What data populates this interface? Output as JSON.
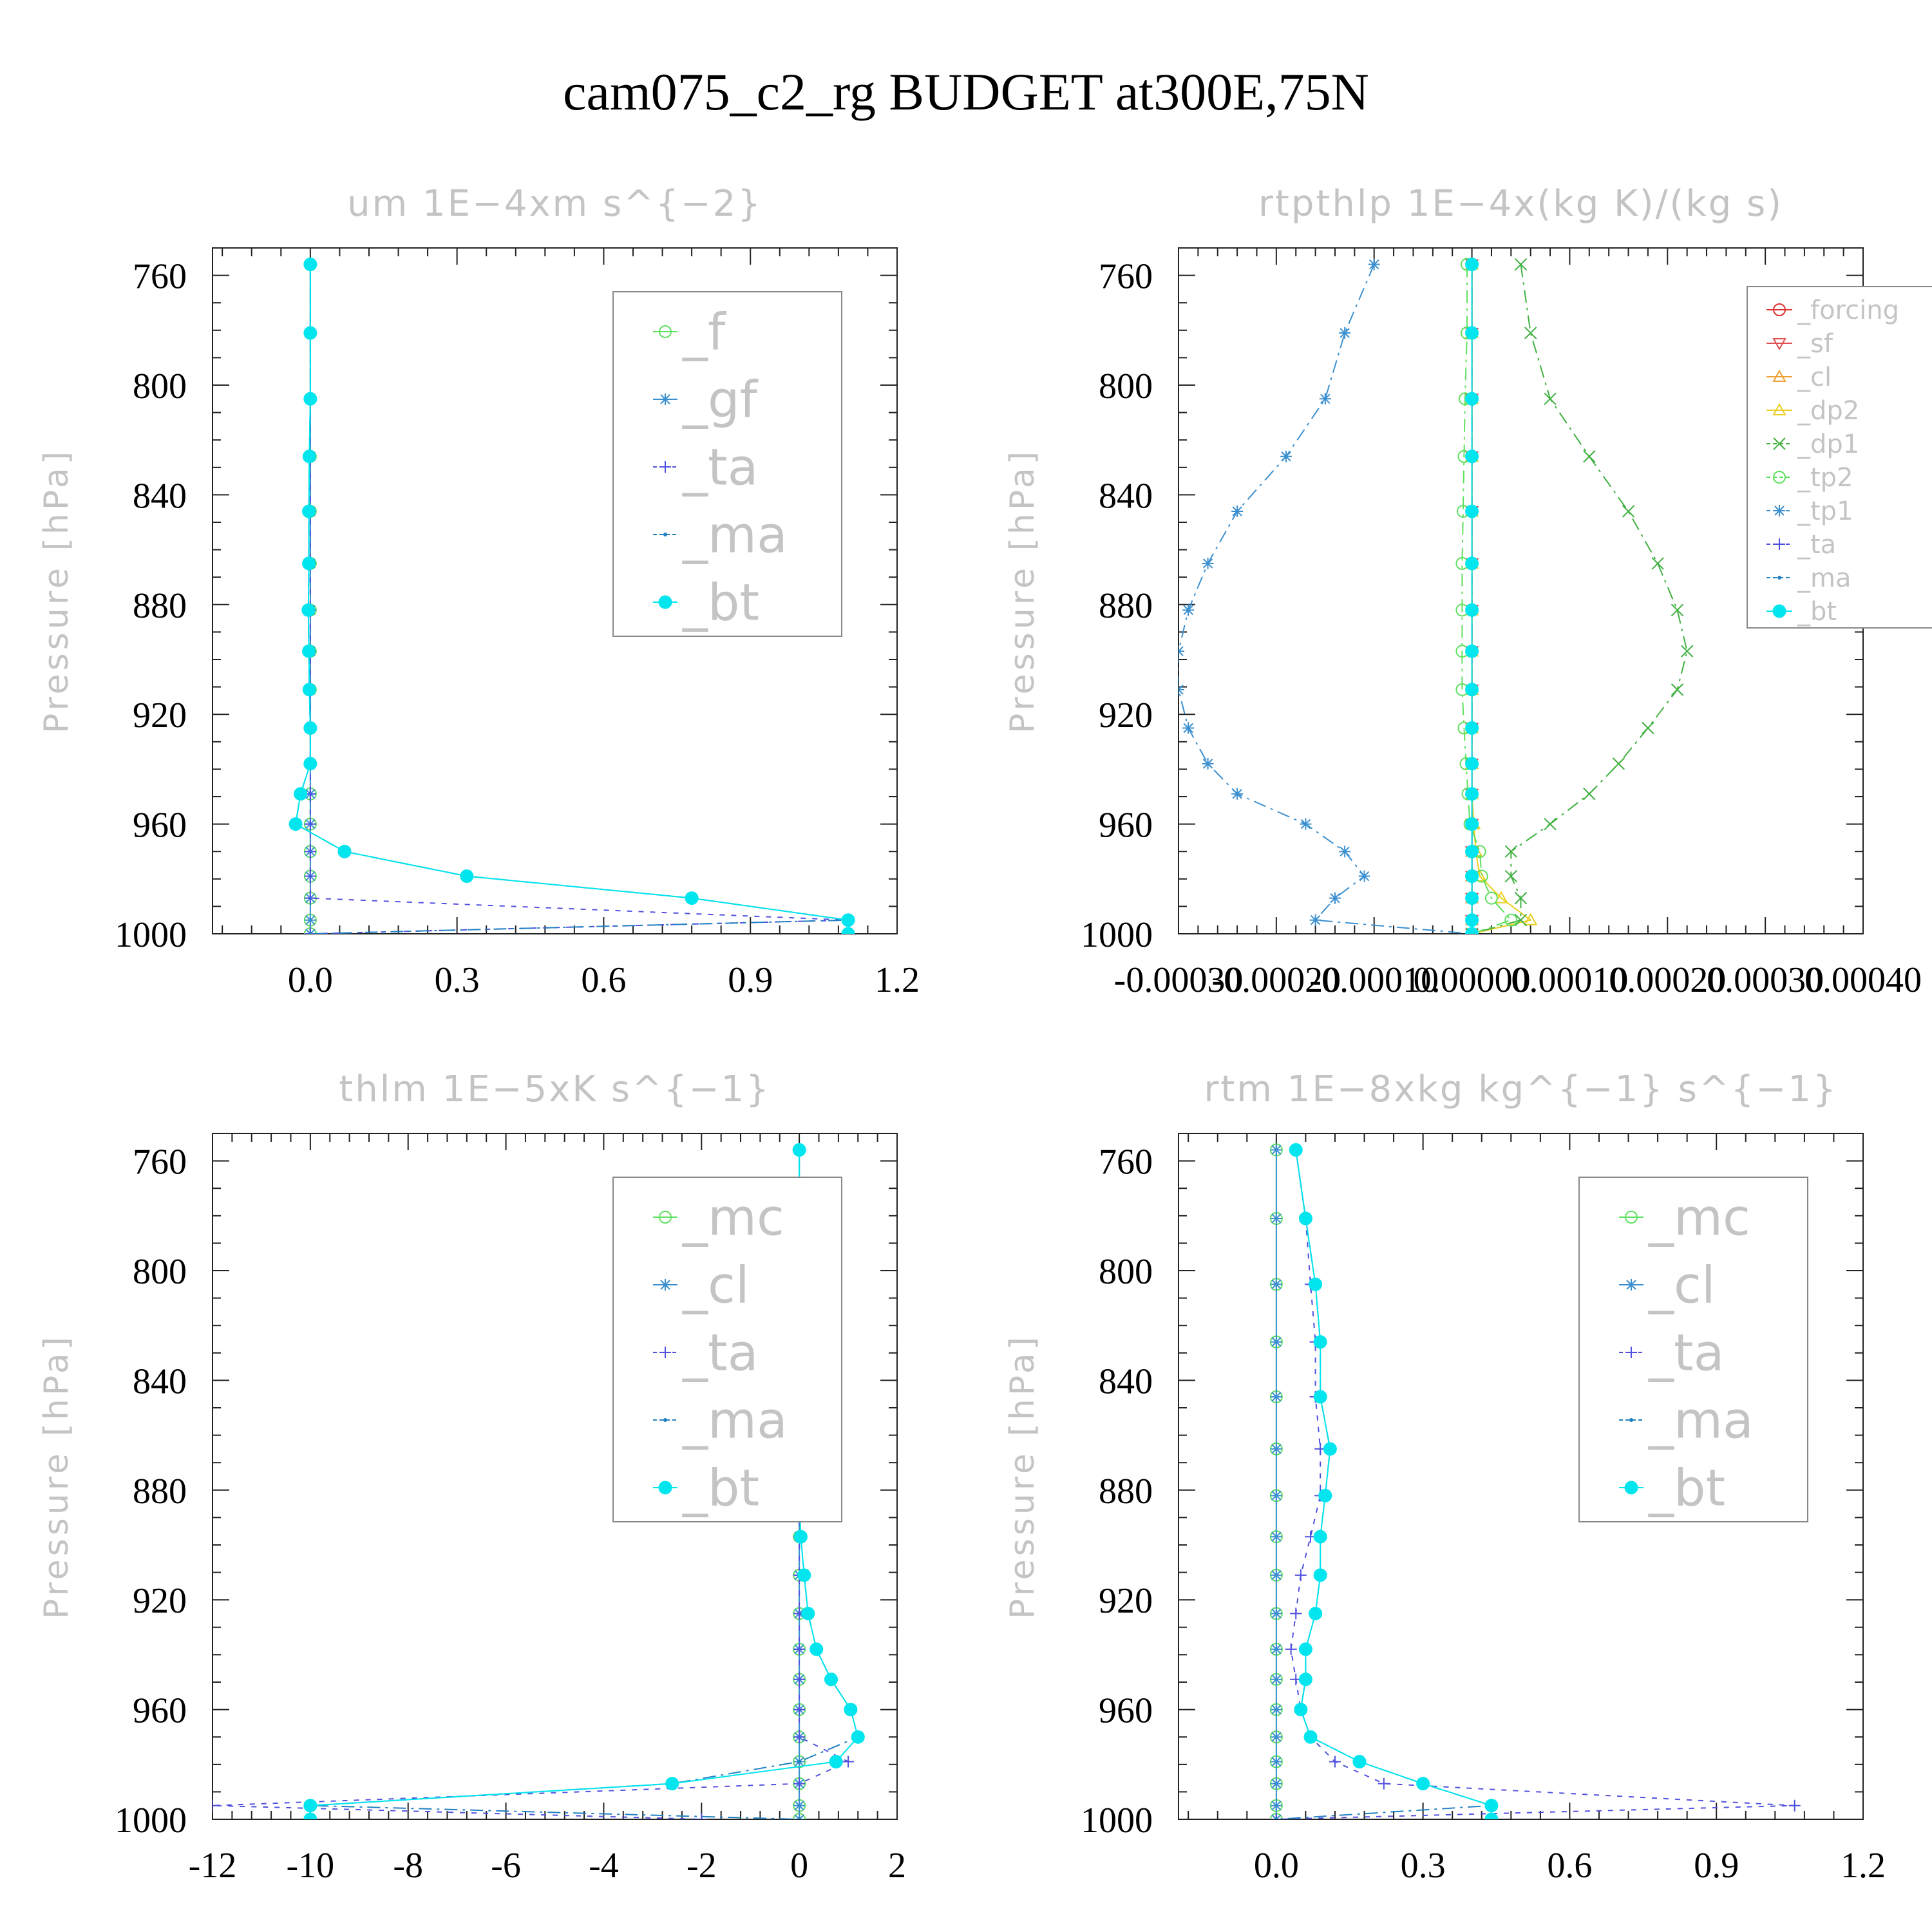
{
  "figure_title": "cam075_c2_rg  BUDGET at300E,75N",
  "chart_data": [
    {
      "type": "line",
      "title": "um   1E−4xm s^{−2}",
      "ylabel": "Pressure [hPa]",
      "xlim": [
        -0.2,
        1.2
      ],
      "ylim": [
        1000,
        750
      ],
      "xticks": [
        0.0,
        0.3,
        0.6,
        0.9,
        1.2
      ],
      "xtick_labels": [
        "0.0",
        "0.3",
        "0.6",
        "0.9",
        "1.2"
      ],
      "yticks": [
        760,
        800,
        840,
        880,
        920,
        960,
        1000
      ],
      "ytick_labels": [
        "760",
        "800",
        "840",
        "880",
        "920",
        "960",
        "1000"
      ],
      "legend_position": "top-right",
      "legend_font": 78,
      "levels": [
        756,
        781,
        805,
        826,
        846,
        865,
        882,
        897,
        911,
        925,
        938,
        949,
        960,
        970,
        979,
        987,
        995,
        1000
      ],
      "series": [
        {
          "name": "_f",
          "color": "#5ee05e",
          "marker": "circle-open",
          "dash": "",
          "values": [
            0,
            0,
            0,
            0,
            0,
            0,
            0,
            0,
            0,
            0,
            0,
            0,
            0,
            0,
            0,
            0,
            0,
            0
          ]
        },
        {
          "name": "_gf",
          "color": "#3a8fd0",
          "marker": "star",
          "dash": "",
          "values": [
            0,
            0,
            0,
            0,
            0,
            0,
            0,
            0,
            0,
            0,
            0,
            0,
            0,
            0,
            0,
            0,
            0,
            0
          ]
        },
        {
          "name": "_ta",
          "color": "#5050e0",
          "marker": "plus",
          "dash": "8,10",
          "values": [
            0,
            0,
            0,
            0,
            0,
            0,
            0,
            0,
            0,
            0,
            0,
            0,
            0,
            0,
            0,
            0,
            1.1,
            0
          ]
        },
        {
          "name": "_ma",
          "color": "#2080c0",
          "marker": "dot",
          "dash": "20,8,4,8",
          "values": [
            0,
            0,
            0,
            -0.002,
            -0.003,
            -0.003,
            -0.004,
            -0.003,
            -0.002,
            0,
            0,
            -0.02,
            -0.03,
            0.07,
            0.32,
            0.78,
            1.1,
            0
          ]
        },
        {
          "name": "_bt",
          "color": "#00e5ee",
          "marker": "filled-circle",
          "dash": "",
          "values": [
            0,
            0,
            0,
            -0.002,
            -0.003,
            -0.003,
            -0.004,
            -0.003,
            -0.002,
            0,
            0,
            -0.02,
            -0.03,
            0.07,
            0.32,
            0.78,
            1.1,
            1.1
          ]
        }
      ]
    },
    {
      "type": "line",
      "title": "rtpthlp   1E−4x(kg K)/(kg s)",
      "ylabel": "Pressure [hPa]",
      "xlim": [
        -0.0003,
        0.0004
      ],
      "ylim": [
        1000,
        750
      ],
      "xticks": [
        -0.0003,
        -0.0002,
        -0.0001,
        0.0,
        0.0001,
        0.0002,
        0.0003,
        0.0004
      ],
      "xtick_labels": [
        "-0.00030",
        "-0.00020",
        "-0.00010",
        "0.00000",
        "0.00010",
        "0.00020",
        "0.00030",
        "0.00040"
      ],
      "yticks": [
        760,
        800,
        840,
        880,
        920,
        960,
        1000
      ],
      "ytick_labels": [
        "760",
        "800",
        "840",
        "880",
        "920",
        "960",
        "1000"
      ],
      "legend_position": "top-right",
      "legend_font": 40,
      "levels": [
        756,
        781,
        805,
        826,
        846,
        865,
        882,
        897,
        911,
        925,
        938,
        949,
        960,
        970,
        979,
        987,
        995,
        1000
      ],
      "series": [
        {
          "name": "_forcing",
          "color": "#e03030",
          "marker": "circle-open",
          "dash": "",
          "values": [
            0,
            0,
            0,
            0,
            0,
            0,
            0,
            0,
            0,
            0,
            0,
            0,
            0,
            0,
            0,
            0,
            0,
            0
          ]
        },
        {
          "name": "_sf",
          "color": "#e05050",
          "marker": "tri-down",
          "dash": "",
          "values": [
            0,
            0,
            0,
            0,
            0,
            0,
            0,
            0,
            0,
            0,
            0,
            0,
            0,
            0,
            0,
            0,
            0,
            0
          ]
        },
        {
          "name": "_cl",
          "color": "#f0a030",
          "marker": "tri-up",
          "dash": "",
          "values": [
            0,
            0,
            0,
            0,
            0,
            0,
            0,
            0,
            0,
            0,
            0,
            0,
            0,
            0,
            0,
            0,
            0,
            0
          ]
        },
        {
          "name": "_dp2",
          "color": "#e8d020",
          "marker": "tri-up",
          "dash": "",
          "values": [
            0,
            0,
            0,
            0,
            0,
            0,
            0,
            0,
            0,
            0,
            0,
            0,
            2e-06,
            4e-06,
            8e-06,
            3e-05,
            6e-05,
            0
          ]
        },
        {
          "name": "_dp1",
          "color": "#40b040",
          "marker": "x",
          "dash": "20,8,4,8",
          "values": [
            5e-05,
            6e-05,
            8e-05,
            0.00012,
            0.00016,
            0.00019,
            0.00021,
            0.00022,
            0.00021,
            0.00018,
            0.00015,
            0.00012,
            8e-05,
            4e-05,
            4e-05,
            5e-05,
            5e-05,
            0
          ]
        },
        {
          "name": "_tp2",
          "color": "#5ee05e",
          "marker": "circle-open",
          "dash": "20,8,4,8",
          "values": [
            -5e-06,
            -5e-06,
            -7e-06,
            -8e-06,
            -9e-06,
            -1e-05,
            -1e-05,
            -1e-05,
            -1e-05,
            -8e-06,
            -6e-06,
            -4e-06,
            -2e-06,
            8e-06,
            1e-05,
            2e-05,
            4e-05,
            0
          ]
        },
        {
          "name": "_tp1",
          "color": "#3a8fd0",
          "marker": "star",
          "dash": "20,8,4,8",
          "values": [
            -0.0001,
            -0.00013,
            -0.00015,
            -0.00019,
            -0.00024,
            -0.00027,
            -0.00029,
            -0.0003,
            -0.0003,
            -0.00029,
            -0.00027,
            -0.00024,
            -0.00017,
            -0.00013,
            -0.00011,
            -0.00014,
            -0.00016,
            0
          ]
        },
        {
          "name": "_ta",
          "color": "#5050e0",
          "marker": "plus",
          "dash": "8,10",
          "values": [
            0,
            0,
            0,
            0,
            0,
            0,
            0,
            0,
            0,
            0,
            0,
            0,
            0,
            0,
            0,
            0,
            0,
            0
          ]
        },
        {
          "name": "_ma",
          "color": "#2080c0",
          "marker": "dot",
          "dash": "20,8,4,8",
          "values": [
            0,
            0,
            0,
            0,
            0,
            0,
            0,
            0,
            0,
            0,
            0,
            0,
            0,
            0,
            0,
            0,
            0,
            0
          ]
        },
        {
          "name": "_bt",
          "color": "#00e5ee",
          "marker": "filled-circle",
          "dash": "",
          "values": [
            0,
            0,
            0,
            0,
            0,
            0,
            0,
            0,
            0,
            0,
            0,
            0,
            0,
            0,
            0,
            0,
            0,
            0
          ]
        }
      ]
    },
    {
      "type": "line",
      "title": "thlm   1E−5xK s^{−1}",
      "ylabel": "Pressure [hPa]",
      "xlim": [
        -12,
        2
      ],
      "ylim": [
        1000,
        750
      ],
      "xticks": [
        -12,
        -10,
        -8,
        -6,
        -4,
        -2,
        0,
        2
      ],
      "xtick_labels": [
        "-12",
        "-10",
        "-8",
        "-6",
        "-4",
        "-2",
        "0",
        "2"
      ],
      "yticks": [
        760,
        800,
        840,
        880,
        920,
        960,
        1000
      ],
      "ytick_labels": [
        "760",
        "800",
        "840",
        "880",
        "920",
        "960",
        "1000"
      ],
      "legend_position": "top-right",
      "legend_font": 78,
      "levels": [
        756,
        781,
        805,
        826,
        846,
        865,
        882,
        897,
        911,
        925,
        938,
        949,
        960,
        970,
        979,
        987,
        995,
        1000
      ],
      "series": [
        {
          "name": "_mc",
          "color": "#5ee05e",
          "marker": "circle-open",
          "dash": "",
          "values": [
            0,
            0,
            0,
            0,
            0,
            0,
            0,
            0,
            0,
            0,
            0,
            0,
            0,
            0,
            0,
            0,
            0,
            0
          ]
        },
        {
          "name": "_cl",
          "color": "#3a8fd0",
          "marker": "star",
          "dash": "",
          "values": [
            0,
            0,
            0,
            0,
            0,
            0,
            0,
            0,
            0,
            0,
            0,
            0,
            0,
            0,
            0,
            0,
            0,
            0
          ]
        },
        {
          "name": "_ta",
          "color": "#5050e0",
          "marker": "plus",
          "dash": "8,10",
          "values": [
            0,
            0,
            0,
            0,
            0,
            0,
            0,
            0,
            0,
            0,
            0,
            0,
            0,
            0,
            1.0,
            0,
            -12,
            -2
          ]
        },
        {
          "name": "_ma",
          "color": "#2080c0",
          "marker": "dot",
          "dash": "20,8,4,8",
          "values": [
            0,
            0,
            -0.02,
            -0.03,
            -0.02,
            0,
            0,
            0.03,
            0.1,
            0.18,
            0.35,
            0.65,
            1.05,
            1.2,
            0,
            -2.6,
            -10,
            0
          ]
        },
        {
          "name": "_bt",
          "color": "#00e5ee",
          "marker": "filled-circle",
          "dash": "",
          "values": [
            0,
            0,
            -0.02,
            -0.03,
            -0.02,
            0,
            0,
            0.03,
            0.1,
            0.18,
            0.35,
            0.65,
            1.05,
            1.2,
            0.75,
            -2.6,
            -10,
            -10
          ]
        }
      ]
    },
    {
      "type": "line",
      "title": "rtm   1E−8xkg kg^{−1} s^{−1}",
      "ylabel": "Pressure [hPa]",
      "xlim": [
        -0.2,
        1.2
      ],
      "ylim": [
        1000,
        750
      ],
      "xticks": [
        0.0,
        0.3,
        0.6,
        0.9,
        1.2
      ],
      "xtick_labels": [
        "0.0",
        "0.3",
        "0.6",
        "0.9",
        "1.2"
      ],
      "yticks": [
        760,
        800,
        840,
        880,
        920,
        960,
        1000
      ],
      "ytick_labels": [
        "760",
        "800",
        "840",
        "880",
        "920",
        "960",
        "1000"
      ],
      "legend_position": "top-right",
      "legend_font": 78,
      "levels": [
        756,
        781,
        805,
        826,
        846,
        865,
        882,
        897,
        911,
        925,
        938,
        949,
        960,
        970,
        979,
        987,
        995,
        1000
      ],
      "series": [
        {
          "name": "_mc",
          "color": "#5ee05e",
          "marker": "circle-open",
          "dash": "",
          "values": [
            0,
            0,
            0,
            0,
            0,
            0,
            0,
            0,
            0,
            0,
            0,
            0,
            0,
            0,
            0,
            0,
            0,
            0
          ]
        },
        {
          "name": "_cl",
          "color": "#3a8fd0",
          "marker": "star",
          "dash": "",
          "values": [
            0,
            0,
            0,
            0,
            0,
            0,
            0,
            0,
            0,
            0,
            0,
            0,
            0,
            0,
            0,
            0,
            0,
            0
          ]
        },
        {
          "name": "_ta",
          "color": "#5050e0",
          "marker": "plus",
          "dash": "8,10",
          "values": [
            0.04,
            0.06,
            0.07,
            0.08,
            0.08,
            0.09,
            0.09,
            0.07,
            0.05,
            0.04,
            0.03,
            0.04,
            0.05,
            0.07,
            0.12,
            0.22,
            1.06,
            0
          ]
        },
        {
          "name": "_ma",
          "color": "#2080c0",
          "marker": "dot",
          "dash": "20,8,4,8",
          "values": [
            0.04,
            0.06,
            0.08,
            0.09,
            0.09,
            0.11,
            0.1,
            0.09,
            0.09,
            0.08,
            0.06,
            0.06,
            0.05,
            0.07,
            0.17,
            0.3,
            0.44,
            0
          ]
        },
        {
          "name": "_bt",
          "color": "#00e5ee",
          "marker": "filled-circle",
          "dash": "",
          "values": [
            0.04,
            0.06,
            0.08,
            0.09,
            0.09,
            0.11,
            0.1,
            0.09,
            0.09,
            0.08,
            0.06,
            0.06,
            0.05,
            0.07,
            0.17,
            0.3,
            0.44,
            0.44
          ]
        }
      ]
    }
  ]
}
